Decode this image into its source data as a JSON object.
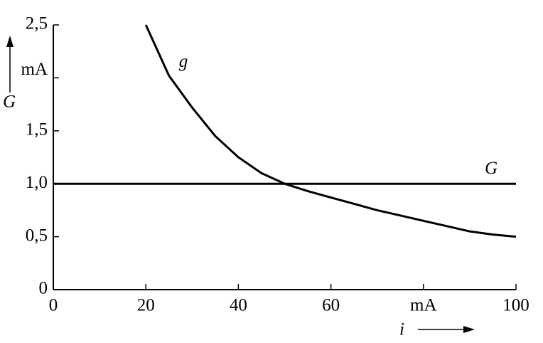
{
  "chart_data": {
    "type": "line",
    "xlabel": "i",
    "ylabel": "G",
    "xlim": [
      0,
      100
    ],
    "ylim": [
      0,
      2.5
    ],
    "xticks": [
      0,
      20,
      40,
      60,
      {
        "value": 80,
        "label": "mA"
      },
      100
    ],
    "yticks": [
      0,
      {
        "value": 0.5,
        "label": "0,5"
      },
      {
        "value": 1,
        "label": "1,0"
      },
      {
        "value": 1.5,
        "label": "1,5"
      },
      {
        "value": 2,
        "label": "mA"
      },
      {
        "value": 2.5,
        "label": "2,5"
      }
    ],
    "series": [
      {
        "name": "g",
        "color": "#000000",
        "x": [
          20,
          25,
          30,
          35,
          40,
          45,
          50,
          55,
          60,
          65,
          70,
          75,
          80,
          85,
          90,
          95,
          100
        ],
        "values": [
          2.5,
          2.02,
          1.72,
          1.45,
          1.25,
          1.1,
          1.0,
          0.93,
          0.87,
          0.81,
          0.75,
          0.7,
          0.65,
          0.6,
          0.55,
          0.52,
          0.5
        ]
      },
      {
        "name": "G",
        "color": "#000000",
        "x": [
          0,
          100
        ],
        "values": [
          1,
          1
        ]
      }
    ]
  }
}
